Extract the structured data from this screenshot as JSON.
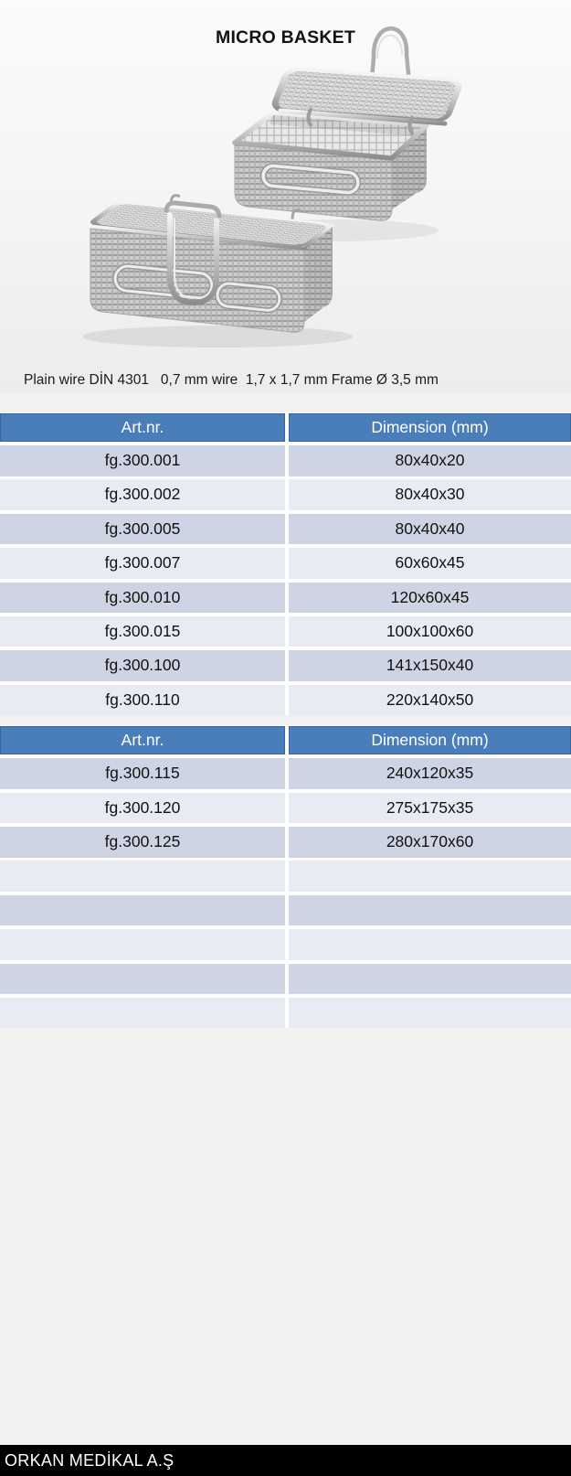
{
  "title": "MICRO BASKET",
  "caption": "Plain wire DİN 4301   0,7 mm wire  1,7 x 1,7 mm Frame Ø 3,5 mm",
  "photo": {
    "description": "Two stainless steel wire mesh micro baskets, one open with raised lid and handle, one closed with latch"
  },
  "tables": [
    {
      "headers": [
        "Art.nr.",
        "Dimension (mm)"
      ],
      "rows": [
        [
          "fg.300.001",
          "80x40x20"
        ],
        [
          "fg.300.002",
          "80x40x30"
        ],
        [
          "fg.300.005",
          "80x40x40"
        ],
        [
          "fg.300.007",
          "60x60x45"
        ],
        [
          "fg.300.010",
          "120x60x45"
        ],
        [
          "fg.300.015",
          "100x100x60"
        ],
        [
          "fg.300.100",
          "141x150x40"
        ],
        [
          "fg.300.110",
          "220x140x50"
        ]
      ],
      "empty_rows": 0
    },
    {
      "headers": [
        "Art.nr.",
        "Dimension (mm)"
      ],
      "rows": [
        [
          "fg.300.115",
          "240x120x35"
        ],
        [
          "fg.300.120",
          "275x175x35"
        ],
        [
          "fg.300.125",
          "280x170x60"
        ]
      ],
      "empty_rows": 5
    }
  ],
  "footer": {
    "company": "ORKAN MEDİKAL A.Ş"
  },
  "colors": {
    "page_bg": "#f1f1ef",
    "header_bg": "#4a7eba",
    "row_dark": "#ced4e4",
    "row_light": "#e9ebf4",
    "footer_bg": "#000000",
    "footer_text": "#ffffff"
  }
}
